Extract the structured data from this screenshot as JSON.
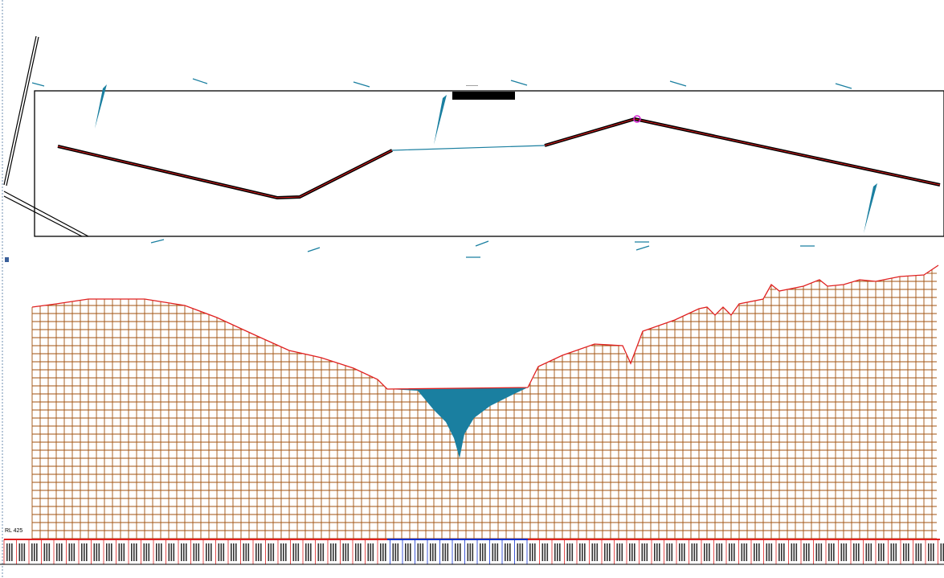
{
  "profile": {
    "datum_label": "RL 425",
    "plan_caption": "———",
    "colors": {
      "ground_line": "#e02020",
      "grid": "#a0520f",
      "water": "#1a7fa0",
      "alignment": "#e02020",
      "label_band_red": "#e02020",
      "label_band_blue": "#1030d0"
    }
  }
}
